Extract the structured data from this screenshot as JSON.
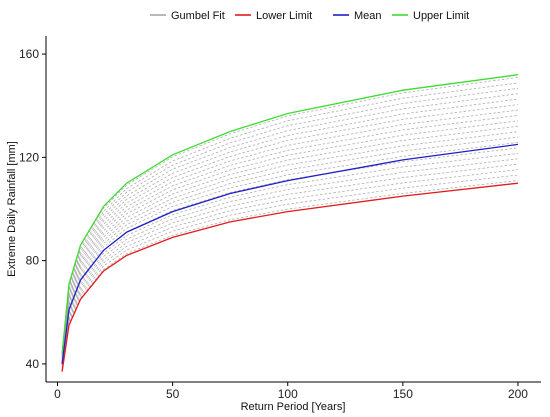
{
  "chart_data": {
    "type": "line",
    "xlabel": "Return Period [Years]",
    "ylabel": "Extreme Daily Rainfall [mm]",
    "xlim": [
      -5,
      210
    ],
    "ylim": [
      33,
      167
    ],
    "x_ticks": [
      0,
      50,
      100,
      150,
      200
    ],
    "y_ticks": [
      40,
      80,
      120,
      160
    ],
    "grid": false,
    "legend_position": "top",
    "x": [
      2,
      5,
      10,
      20,
      30,
      50,
      75,
      100,
      150,
      200
    ],
    "series": [
      {
        "name": "Gumbel Fit",
        "color": "#a6a6a6",
        "style": "dashed",
        "ensemble_count": 20,
        "ensemble_range": [
          "Lower Limit",
          "Upper Limit"
        ]
      },
      {
        "name": "Lower Limit",
        "color": "#e41a1c",
        "values": [
          37,
          55,
          65,
          76,
          82,
          89,
          95,
          99,
          105,
          110
        ]
      },
      {
        "name": "Mean",
        "color": "#1f1fc8",
        "values": [
          40,
          61,
          72.5,
          84,
          91,
          99,
          106,
          111,
          119,
          125
        ]
      },
      {
        "name": "Upper Limit",
        "color": "#3ddc2f",
        "values": [
          44,
          71,
          86,
          101,
          110,
          121,
          130,
          137,
          146,
          152
        ]
      }
    ]
  }
}
